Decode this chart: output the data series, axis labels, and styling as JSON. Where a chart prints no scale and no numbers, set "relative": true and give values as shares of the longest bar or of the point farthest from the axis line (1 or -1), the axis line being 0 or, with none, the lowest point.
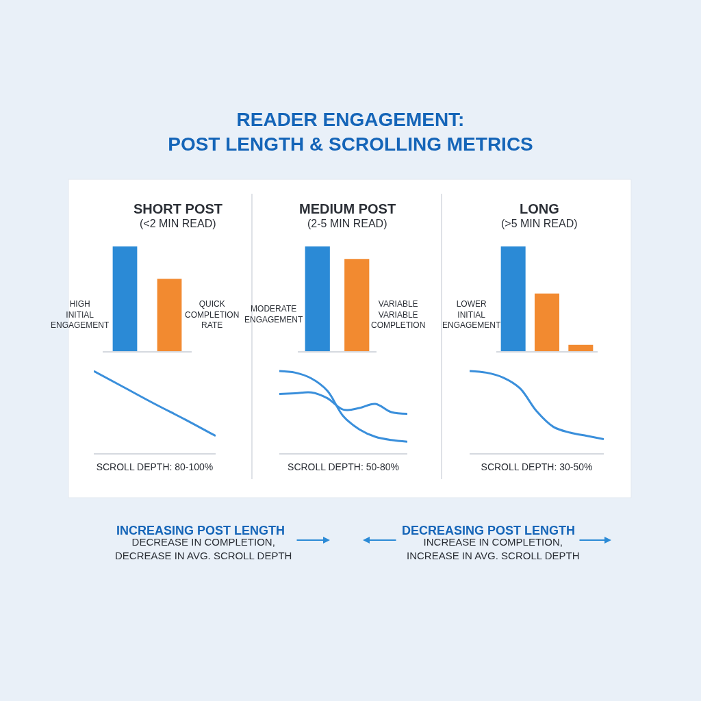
{
  "chart_data": [
    {
      "type": "bar",
      "title": "SHORT POST",
      "subtitle": "(<2 MIN READ)",
      "categories": [
        null,
        null
      ],
      "values": [
        1,
        0.69
      ],
      "colors": [
        "#2b8ad6",
        "#f28a30"
      ],
      "relative": true,
      "tick_labels": false,
      "annotations": [
        "HIGH\nINITIAL\nENGAGEMENT",
        "QUICK\nCOMPLETION\nRATE"
      ]
    },
    {
      "type": "bar",
      "title": "MEDIUM POST",
      "subtitle": "(2-5 MIN READ)",
      "categories": [
        null,
        null
      ],
      "values": [
        1,
        0.88
      ],
      "colors": [
        "#2b8ad6",
        "#f28a30"
      ],
      "relative": true,
      "tick_labels": false,
      "annotations": [
        "MODERATE\nENGAGEMENT",
        "VARIABLE\nVARIABLE\nCOMPLETION"
      ]
    },
    {
      "type": "bar",
      "title": "LONG",
      "subtitle": "(>5 MIN READ)",
      "categories": [
        null,
        null,
        null
      ],
      "values": [
        1,
        0.55,
        0.06
      ],
      "colors": [
        "#2b8ad6",
        "#f28a30",
        "#f28a30"
      ],
      "relative": true,
      "tick_labels": false,
      "annotations": [
        "LOWER\nINITIAL\nENGAGEMENT"
      ]
    },
    {
      "type": "line",
      "xlabel": "SCROLL DEPTH: 80-100%",
      "categories": [
        null,
        null,
        null,
        null,
        null
      ],
      "relative": true,
      "tick_labels": false,
      "series": [
        {
          "color": "#3a8fdb",
          "values": [
            1,
            0.8,
            0.6,
            0.41,
            0.21
          ]
        }
      ]
    },
    {
      "type": "line",
      "xlabel": "SCROLL DEPTH: 50-80%",
      "categories": [
        null,
        null,
        null,
        null,
        null,
        null,
        null,
        null,
        null
      ],
      "relative": true,
      "tick_labels": false,
      "series": [
        {
          "color": "#3a8fdb",
          "values": [
            1,
            0.98,
            0.91,
            0.76,
            0.45,
            0.29,
            0.2,
            0.16,
            0.14
          ]
        },
        {
          "color": "#3a8fdb",
          "values": [
            0.72,
            0.73,
            0.74,
            0.67,
            0.53,
            0.55,
            0.6,
            0.5,
            0.48
          ]
        }
      ]
    },
    {
      "type": "line",
      "xlabel": "SCROLL DEPTH: 30-50%",
      "categories": [
        null,
        null,
        null,
        null,
        null,
        null,
        null,
        null,
        null
      ],
      "relative": true,
      "tick_labels": false,
      "series": [
        {
          "color": "#3a8fdb",
          "values": [
            1,
            0.98,
            0.92,
            0.79,
            0.51,
            0.32,
            0.25,
            0.21,
            0.17
          ]
        }
      ]
    },
    {
      "type": "other",
      "title": "READER ENGAGEMENT:\nPOST LENGTH & SCROLLING METRICS",
      "annotations": [
        "INCREASING POST LENGTH",
        "DECREASE IN COMPLETION,\nDECREASE IN AVG. SCROLL DEPTH",
        "DECREASING POST LENGTH",
        "INCREASE IN COMPLETION,\nINCREASE IN AVG. SCROLL DEPTH"
      ]
    }
  ]
}
